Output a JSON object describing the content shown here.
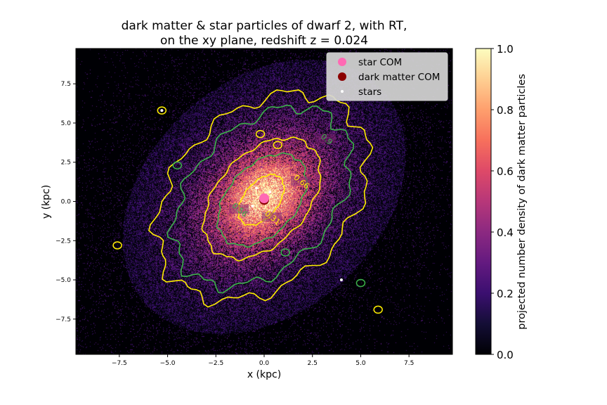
{
  "chart_data": {
    "type": "heatmap",
    "title": [
      "dark matter & star particles of dwarf 2, with RT,",
      "on the xy plane, redshift z = 0.024"
    ],
    "xlabel": "x (kpc)",
    "ylabel": "y (kpc)",
    "xlim": [
      -9.75,
      9.75
    ],
    "ylim": [
      -9.75,
      9.75
    ],
    "xticks": [
      -7.5,
      -5.0,
      -2.5,
      0.0,
      2.5,
      5.0,
      7.5
    ],
    "xtick_labels": [
      "−7.5",
      "−5.0",
      "−2.5",
      "0.0",
      "2.5",
      "5.0",
      "7.5"
    ],
    "yticks": [
      7.5,
      5.0,
      2.5,
      0.0,
      -2.5,
      -5.0,
      -7.5
    ],
    "ytick_labels": [
      "7.5",
      "5.0",
      "2.5",
      "0.0",
      "−2.5",
      "−5.0",
      "−7.5"
    ],
    "colormap": "magma",
    "colorbar": {
      "label": "projected number density of dark matter particles",
      "range": [
        0.0,
        1.0
      ],
      "ticks": [
        0.0,
        0.2,
        0.4,
        0.6,
        0.8,
        1.0
      ],
      "tick_labels": [
        "0.0",
        "0.2",
        "0.4",
        "0.6",
        "0.8",
        "1.0"
      ]
    },
    "density_model": {
      "center": [
        0.0,
        0.3
      ],
      "semi_axes_kpc": [
        5.2,
        7.5
      ],
      "tilt_deg": 30
    },
    "contours": [
      {
        "level_label": "0.31",
        "color": "#ffee00",
        "center": [
          -0.15,
          0.1
        ],
        "semi_axes": [
          0.95,
          1.75
        ],
        "tilt_deg": 28,
        "label_pos": [
          0.4,
          -1.1
        ]
      },
      {
        "level_label": "0.56",
        "color": "#3cb34a",
        "center": [
          -0.1,
          0.1
        ],
        "semi_axes": [
          1.9,
          3.2
        ],
        "tilt_deg": 30,
        "label_pos": [
          -1.3,
          -0.6
        ]
      },
      {
        "level_label": "0.66",
        "color": "#ffee00",
        "center": [
          -0.1,
          0.2
        ],
        "semi_axes": [
          2.5,
          4.2
        ],
        "tilt_deg": 30,
        "label_pos": [
          1.9,
          1.2
        ]
      },
      {
        "level_label": "0.9",
        "color": "#3cb34a",
        "center": [
          -0.1,
          0.3
        ],
        "semi_axes": [
          3.9,
          6.2
        ],
        "tilt_deg": 30,
        "label_pos": [
          3.2,
          3.9
        ]
      },
      {
        "level_label": "",
        "color": "#ffee00",
        "center": [
          -0.1,
          0.3
        ],
        "semi_axes": [
          4.8,
          7.1
        ],
        "tilt_deg": 30,
        "label_pos": null
      }
    ],
    "substructures": [
      {
        "x": -5.3,
        "y": 5.8,
        "color": "#ffee00"
      },
      {
        "x": -7.6,
        "y": -2.8,
        "color": "#ffee00"
      },
      {
        "x": 5.9,
        "y": -6.9,
        "color": "#ffee00"
      },
      {
        "x": 1.1,
        "y": -3.25,
        "color": "#3cb34a"
      },
      {
        "x": -4.5,
        "y": 2.3,
        "color": "#3cb34a"
      },
      {
        "x": 5.0,
        "y": -5.2,
        "color": "#3cb34a"
      },
      {
        "x": -0.2,
        "y": 4.3,
        "color": "#ffee00"
      },
      {
        "x": 0.7,
        "y": 3.6,
        "color": "#ffee00"
      }
    ],
    "series": [
      {
        "name": "star COM",
        "color": "#ff69b4",
        "points": [
          [
            0.0,
            0.2
          ]
        ],
        "marker_size": 7
      },
      {
        "name": "dark matter COM",
        "color": "#8b0000",
        "points": [
          [
            0.0,
            0.1
          ]
        ],
        "marker_size": 7
      },
      {
        "name": "stars",
        "color": "#ffffff",
        "points": [
          [
            -0.4,
            0.85
          ],
          [
            0.3,
            0.6
          ],
          [
            -5.3,
            5.8
          ],
          [
            4.0,
            -5.0
          ],
          [
            -0.6,
            -0.3
          ]
        ],
        "marker_size": 2
      }
    ],
    "legend_position": "top-right"
  }
}
